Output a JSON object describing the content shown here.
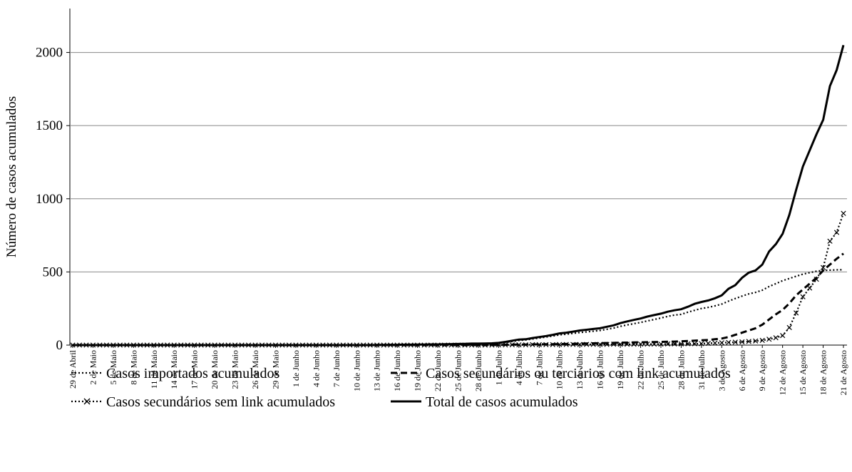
{
  "chart_data": {
    "type": "line",
    "y_label": "Número de casos acumulados",
    "ylim": [
      0,
      2300
    ],
    "yticks": [
      0,
      500,
      1000,
      1500,
      2000
    ],
    "grid": true,
    "categories": [
      "29 de Abril",
      null,
      null,
      "2 de Maio",
      null,
      null,
      "5 de Maio",
      null,
      null,
      "8 de Maio",
      null,
      null,
      "11 de Maio",
      null,
      null,
      "14 de Maio",
      null,
      null,
      "17 de Maio",
      null,
      null,
      "20 de Maio",
      null,
      null,
      "23 de Maio",
      null,
      null,
      "26 de Maio",
      null,
      null,
      "29 de Maio",
      null,
      null,
      "1 de Junho",
      null,
      null,
      "4 de Junho",
      null,
      null,
      "7 de Junho",
      null,
      null,
      "10 de Junho",
      null,
      null,
      "13 de Junho",
      null,
      null,
      "16 de Junho",
      null,
      null,
      "19 de Junho",
      null,
      null,
      "22 de Junho",
      null,
      null,
      "25 de Junho",
      null,
      null,
      "28 de Junho",
      null,
      null,
      "1 de Julho",
      null,
      null,
      "4 de Julho",
      null,
      null,
      "7 de Julho",
      null,
      null,
      "10 de Julho",
      null,
      null,
      "13 de Julho",
      null,
      null,
      "16 de Julho",
      null,
      null,
      "19 de Julho",
      null,
      null,
      "22 de Julho",
      null,
      null,
      "25 de Julho",
      null,
      null,
      "28 de Julho",
      null,
      null,
      "31 de Julho",
      null,
      null,
      "3 de Agosto",
      null,
      null,
      "6 de Agosto",
      null,
      null,
      "9 de Agosto",
      null,
      null,
      "12 de Agosto",
      null,
      null,
      "15 de Agosto",
      null,
      null,
      "18 de Agosto",
      null,
      null,
      "21 de Agosto"
    ],
    "series": [
      {
        "name": "Casos importados acumulados",
        "color": "#000000",
        "dash": "dotted",
        "values": [
          0,
          0,
          0,
          0,
          0,
          0,
          0,
          0,
          0,
          0,
          0,
          0,
          0,
          0,
          0,
          0,
          0,
          0,
          0,
          0,
          0,
          0,
          0,
          0,
          0,
          0,
          0,
          0,
          0,
          0,
          0,
          0,
          0,
          0,
          0,
          0,
          0,
          0,
          0,
          0,
          0,
          0,
          0,
          0,
          0,
          1,
          1,
          2,
          2,
          3,
          3,
          4,
          4,
          5,
          5,
          6,
          7,
          8,
          9,
          10,
          10,
          11,
          12,
          13,
          18,
          25,
          32,
          35,
          42,
          48,
          55,
          62,
          70,
          74,
          80,
          86,
          90,
          95,
          100,
          108,
          116,
          128,
          138,
          146,
          155,
          165,
          175,
          185,
          196,
          205,
          210,
          225,
          238,
          250,
          258,
          268,
          280,
          300,
          318,
          335,
          350,
          360,
          375,
          400,
          420,
          440,
          455,
          470,
          485,
          495,
          505,
          510,
          512,
          514,
          515
        ]
      },
      {
        "name": "Casos secundários ou terciários com link acumulados",
        "color": "#000000",
        "dash": "dashed",
        "values": [
          0,
          0,
          0,
          0,
          0,
          0,
          0,
          0,
          0,
          0,
          0,
          0,
          0,
          0,
          0,
          0,
          0,
          0,
          0,
          0,
          0,
          0,
          0,
          0,
          0,
          0,
          0,
          0,
          0,
          0,
          0,
          0,
          0,
          0,
          0,
          0,
          0,
          0,
          0,
          0,
          0,
          0,
          0,
          0,
          0,
          0,
          0,
          0,
          0,
          0,
          0,
          0,
          0,
          0,
          0,
          0,
          0,
          0,
          0,
          0,
          0,
          0,
          0,
          1,
          2,
          3,
          4,
          4,
          5,
          5,
          6,
          6,
          7,
          8,
          9,
          10,
          11,
          12,
          13,
          14,
          15,
          16,
          17,
          18,
          19,
          20,
          21,
          22,
          23,
          24,
          26,
          28,
          30,
          33,
          35,
          40,
          45,
          55,
          70,
          85,
          100,
          115,
          140,
          175,
          210,
          240,
          285,
          340,
          380,
          420,
          460,
          510,
          550,
          590,
          625
        ]
      },
      {
        "name": "Casos secundários sem link acumulados",
        "color": "#000000",
        "dash": "dotted",
        "marker": "x",
        "values": [
          0,
          0,
          0,
          0,
          0,
          0,
          0,
          0,
          0,
          0,
          0,
          0,
          0,
          0,
          0,
          0,
          0,
          0,
          0,
          0,
          0,
          0,
          0,
          0,
          0,
          0,
          0,
          0,
          0,
          0,
          0,
          0,
          0,
          0,
          0,
          0,
          0,
          0,
          0,
          0,
          0,
          0,
          0,
          0,
          0,
          0,
          0,
          0,
          0,
          0,
          0,
          0,
          0,
          0,
          0,
          0,
          0,
          0,
          0,
          0,
          0,
          0,
          0,
          1,
          1,
          2,
          2,
          2,
          3,
          3,
          3,
          3,
          4,
          4,
          4,
          4,
          5,
          5,
          5,
          5,
          6,
          6,
          6,
          6,
          7,
          7,
          7,
          7,
          8,
          8,
          8,
          9,
          9,
          10,
          12,
          14,
          16,
          18,
          20,
          22,
          25,
          28,
          32,
          40,
          50,
          65,
          120,
          220,
          330,
          390,
          450,
          530,
          710,
          770,
          900
        ]
      },
      {
        "name": "Total de casos acumulados",
        "color": "#000000",
        "dash": "solid",
        "values": [
          0,
          0,
          0,
          0,
          0,
          0,
          0,
          0,
          0,
          0,
          0,
          0,
          0,
          0,
          0,
          0,
          0,
          0,
          0,
          0,
          0,
          0,
          0,
          0,
          0,
          0,
          0,
          0,
          0,
          0,
          0,
          0,
          0,
          0,
          0,
          0,
          0,
          0,
          0,
          0,
          0,
          0,
          0,
          0,
          0,
          1,
          1,
          2,
          2,
          3,
          3,
          4,
          4,
          5,
          5,
          6,
          7,
          8,
          9,
          10,
          10,
          11,
          12,
          15,
          22,
          30,
          38,
          40,
          48,
          55,
          62,
          70,
          80,
          85,
          92,
          100,
          105,
          110,
          115,
          125,
          135,
          150,
          162,
          172,
          182,
          195,
          205,
          215,
          228,
          238,
          245,
          262,
          282,
          295,
          305,
          320,
          340,
          385,
          410,
          460,
          495,
          510,
          550,
          640,
          690,
          760,
          890,
          1060,
          1220,
          1330,
          1440,
          1540,
          1770,
          1880,
          2050
        ]
      }
    ]
  }
}
